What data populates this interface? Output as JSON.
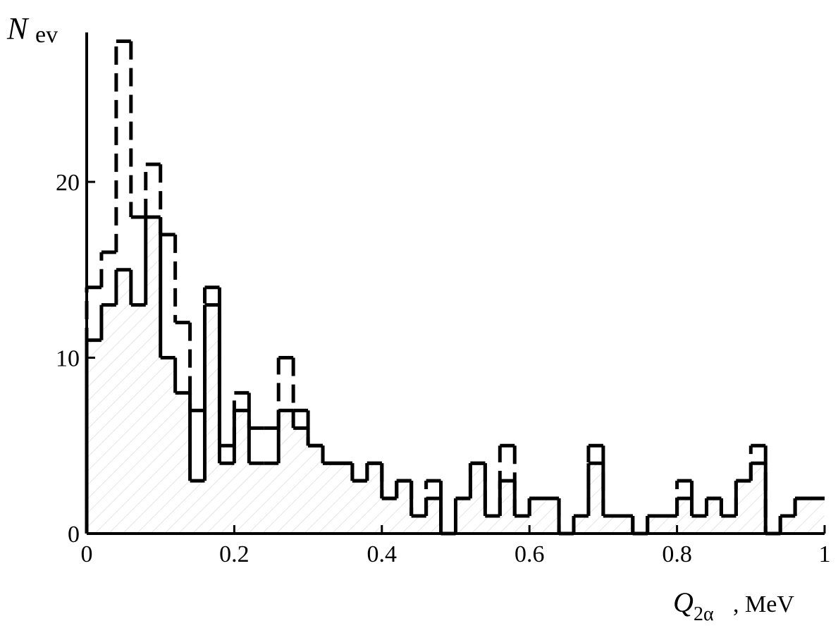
{
  "chart_data": {
    "type": "histogram",
    "ylabel": {
      "main": "N",
      "sub": "ev"
    },
    "xlabel": {
      "main": "Q",
      "sub": "2α",
      "unit": ", MeV"
    },
    "bins": [
      0,
      0.02,
      0.04,
      0.06,
      0.08,
      0.1,
      0.12,
      0.14,
      0.16,
      0.18,
      0.2,
      0.22,
      0.24,
      0.26,
      0.28,
      0.3,
      0.32,
      0.34,
      0.36,
      0.38,
      0.4,
      0.42,
      0.44,
      0.46,
      0.48,
      0.5,
      0.52,
      0.54,
      0.56,
      0.58,
      0.6,
      0.62,
      0.64,
      0.66,
      0.68,
      0.7,
      0.72,
      0.74,
      0.76,
      0.78,
      0.8,
      0.82,
      0.84,
      0.86,
      0.88,
      0.9,
      0.92,
      0.94,
      0.96,
      0.98,
      1
    ],
    "series": [
      {
        "style": "dashed",
        "color": "#000000",
        "values": [
          14,
          16,
          28,
          18,
          21,
          17,
          12,
          7,
          14,
          5,
          8,
          6,
          6,
          10,
          7,
          5,
          4,
          4,
          3,
          4,
          2,
          3,
          1,
          3,
          0,
          2,
          4,
          1,
          5,
          1,
          2,
          2,
          0,
          1,
          5,
          1,
          1,
          0,
          1,
          1,
          3,
          1,
          2,
          1,
          3,
          5,
          0,
          1,
          2,
          2
        ]
      },
      {
        "style": "solid",
        "color": "#000000",
        "hatch": true,
        "values": [
          11,
          13,
          15,
          13,
          18,
          10,
          8,
          3,
          13,
          4,
          7,
          4,
          4,
          7,
          6,
          5,
          4,
          4,
          3,
          4,
          2,
          3,
          1,
          2,
          0,
          2,
          4,
          1,
          3,
          1,
          2,
          2,
          0,
          1,
          4,
          1,
          1,
          0,
          1,
          1,
          2,
          1,
          2,
          1,
          3,
          4,
          0,
          1,
          2,
          2
        ]
      }
    ],
    "xlim": [
      0,
      1
    ],
    "ylim": [
      0,
      28.5
    ],
    "xticks": [
      0,
      0.2,
      0.4,
      0.6,
      0.8,
      1
    ],
    "yticks": [
      0,
      10,
      20
    ]
  }
}
